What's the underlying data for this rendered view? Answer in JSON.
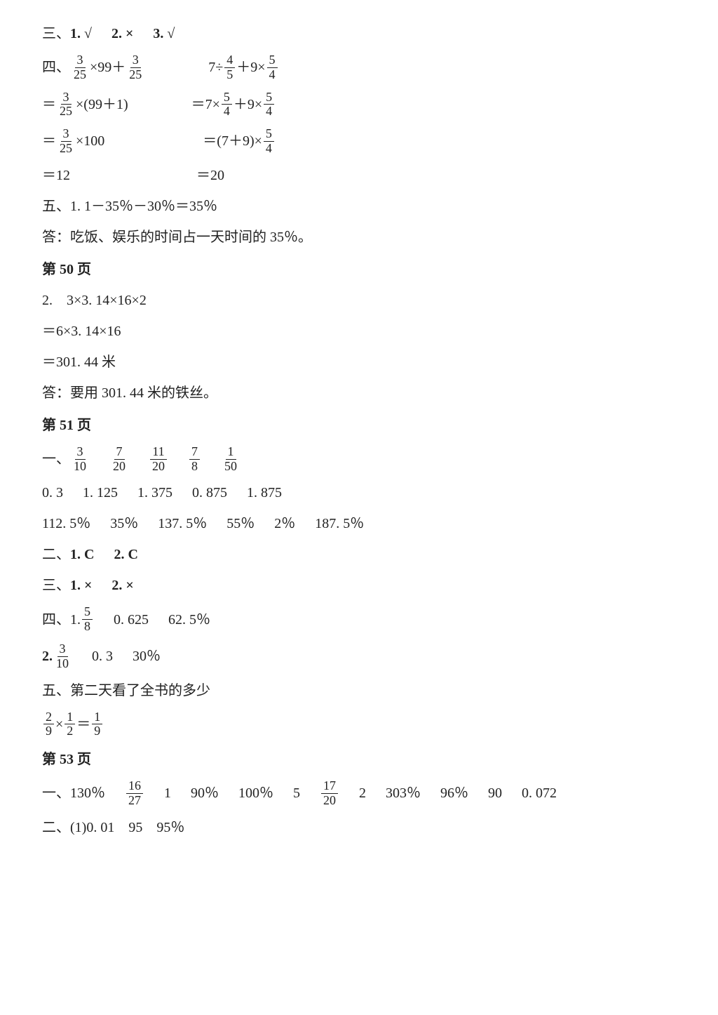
{
  "san": {
    "prefix": "三、",
    "items": [
      "1. √",
      "2. ×",
      "3. √"
    ]
  },
  "si": {
    "prefix": "四、",
    "colA": {
      "l1": {
        "pre": "",
        "f": {
          "n": "3",
          "d": "25"
        },
        "post": "×99＋",
        "f2": {
          "n": "3",
          "d": "25"
        }
      },
      "l2": {
        "pre": "＝",
        "f": {
          "n": "3",
          "d": "25"
        },
        "post": "×(99＋1)"
      },
      "l3": {
        "pre": "＝",
        "f": {
          "n": "3",
          "d": "25"
        },
        "post": "×100"
      },
      "l4": "＝12"
    },
    "colB": {
      "l1": {
        "pre": "7÷",
        "f": {
          "n": "4",
          "d": "5"
        },
        "mid": "＋9×",
        "f2": {
          "n": "5",
          "d": "4"
        }
      },
      "l2": {
        "pre": "＝7×",
        "f": {
          "n": "5",
          "d": "4"
        },
        "mid": "＋9×",
        "f2": {
          "n": "5",
          "d": "4"
        }
      },
      "l3": {
        "pre": "＝(7＋9)×",
        "f": {
          "n": "5",
          "d": "4"
        }
      },
      "l4": "＝20"
    }
  },
  "wu1": {
    "line1": "五、1. 1－35％－30％＝35％",
    "ans": "答：吃饭、娱乐的时间占一天时间的 35％。"
  },
  "p50": {
    "heading": "第 50 页",
    "l1": "2.　3×3. 14×16×2",
    "l2": "＝6×3. 14×16",
    "l3": "＝301. 44 米",
    "ans": "答：要用 301. 44 米的铁丝。"
  },
  "p51": {
    "heading": "第 51 页",
    "yi": {
      "prefix": "一、",
      "fracs": [
        {
          "n": "3",
          "d": "10"
        },
        {
          "n": "7",
          "d": "20"
        },
        {
          "n": "11",
          "d": "20"
        },
        {
          "n": "7",
          "d": "8"
        },
        {
          "n": "1",
          "d": "50"
        }
      ],
      "decimals": [
        "0. 3",
        "1. 125",
        "1. 375",
        "0. 875",
        "1. 875"
      ],
      "percents": [
        "112. 5％",
        "35％",
        "137. 5％",
        "55％",
        "2％",
        "187. 5％"
      ]
    },
    "er": {
      "prefix": "二、",
      "items": [
        "1. C",
        "2. C"
      ]
    },
    "san": {
      "prefix": "三、",
      "items": [
        "1. ×",
        "2. ×"
      ]
    },
    "si_1": {
      "prefix": "四、1.",
      "f": {
        "n": "5",
        "d": "8"
      },
      "vals": [
        "0. 625",
        "62. 5％"
      ]
    },
    "si_2": {
      "prefix": "2.",
      "f": {
        "n": "3",
        "d": "10"
      },
      "vals": [
        "0. 3",
        "30％"
      ]
    },
    "wu": {
      "title": "五、第二天看了全书的多少",
      "eq": {
        "f1": {
          "n": "2",
          "d": "9"
        },
        "op": "×",
        "f2": {
          "n": "1",
          "d": "2"
        },
        "eqs": "＝",
        "f3": {
          "n": "1",
          "d": "9"
        }
      }
    }
  },
  "p53": {
    "heading": "第 53 页",
    "yi": {
      "prefix": "一、",
      "parts": [
        {
          "t": "130％"
        },
        {
          "f": {
            "n": "16",
            "d": "27"
          }
        },
        {
          "t": "1"
        },
        {
          "t": "90％"
        },
        {
          "t": "100％"
        },
        {
          "t": "5"
        },
        {
          "f": {
            "n": "17",
            "d": "20"
          }
        },
        {
          "t": "2"
        },
        {
          "t": "303％"
        },
        {
          "t": "96％"
        },
        {
          "t": "90"
        },
        {
          "t": "0. 072"
        }
      ]
    },
    "er": "二、(1)0. 01　95　95％"
  }
}
